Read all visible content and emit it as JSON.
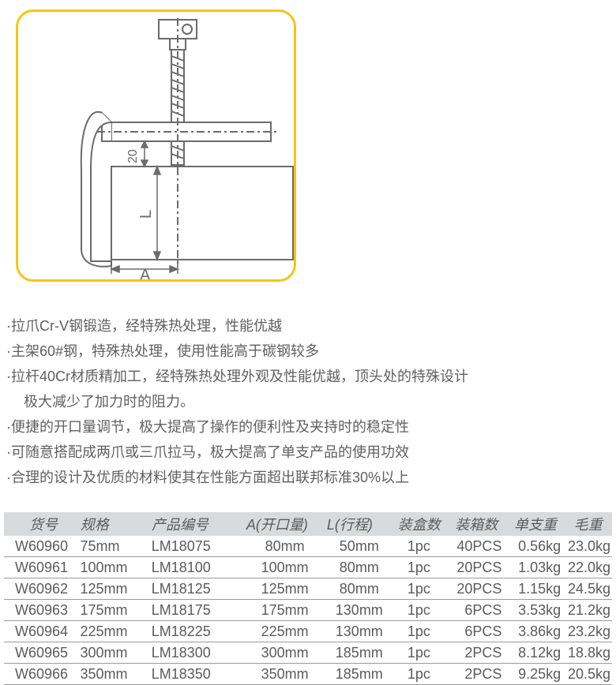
{
  "diagram": {
    "border_color": "#f5c518",
    "stroke_color": "#6b6b6b",
    "label_a": "A",
    "label_l": "L",
    "label_20": "20"
  },
  "features": [
    "·拉爪Cr-V钢锻造，经特殊热处理，性能优越",
    "·主架60#钢，特殊热处理，使用性能高于碳钢较多",
    "·拉杆40Cr材质精加工，经特殊热处理外观及性能优越，顶头处的特殊设计",
    "极大减少了加力时的阻力。",
    "·便捷的开口量调节，极大提高了操作的便利性及夹持时的稳定性",
    "·可随意搭配成两爪或三爪拉马，极大提高了单支产品的使用功效",
    "·合理的设计及优质的材料使其在性能方面超出联邦标准30%以上"
  ],
  "feature_indent_indices": [
    3
  ],
  "table": {
    "headers": [
      "货号",
      "规格",
      "产品编号",
      "A(开口量)",
      "L(行程)",
      "装盒数",
      "装箱数",
      "单支重",
      "毛重"
    ],
    "rows": [
      [
        "W60960",
        "75mm",
        "LM18075",
        "80mm",
        "50mm",
        "1pc",
        "40PCS",
        "0.56kg",
        "23.0kg"
      ],
      [
        "W60961",
        "100mm",
        "LM18100",
        "100mm",
        "80mm",
        "1pc",
        "20PCS",
        "1.03kg",
        "22.0kg"
      ],
      [
        "W60962",
        "125mm",
        "LM18125",
        "125mm",
        "80mm",
        "1pc",
        "20PCS",
        "1.15kg",
        "24.5kg"
      ],
      [
        "W60963",
        "175mm",
        "LM18175",
        "175mm",
        "130mm",
        "1pc",
        "6PCS",
        "3.53kg",
        "21.2kg"
      ],
      [
        "W60964",
        "225mm",
        "LM18225",
        "225mm",
        "130mm",
        "1pc",
        "6PCS",
        "3.86kg",
        "23.2kg"
      ],
      [
        "W60965",
        "300mm",
        "LM18300",
        "300mm",
        "185mm",
        "1pc",
        "2PCS",
        "8.12kg",
        "18.8kg"
      ],
      [
        "W60966",
        "350mm",
        "LM18350",
        "350mm",
        "185mm",
        "1pc",
        "2PCS",
        "9.25kg",
        "20.5kg"
      ]
    ]
  }
}
